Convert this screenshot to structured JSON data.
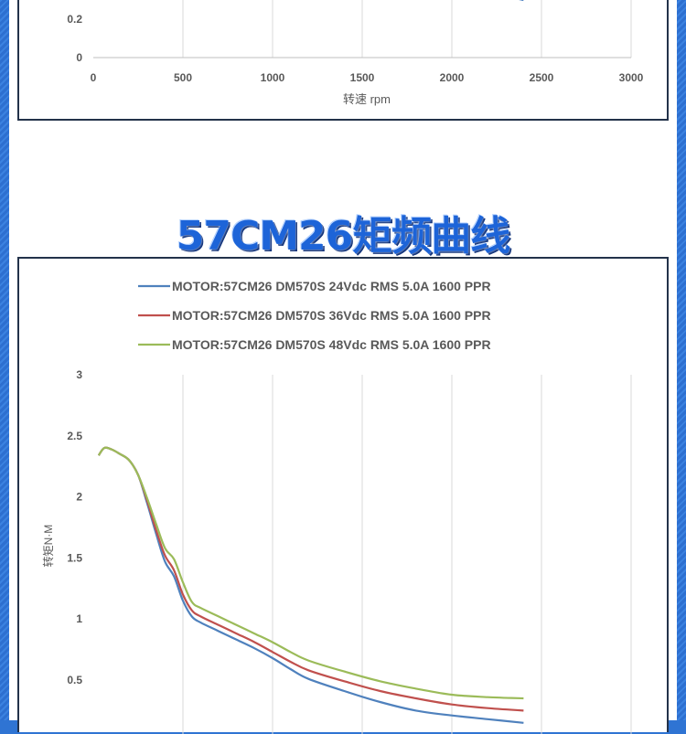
{
  "page": {
    "section_title": "57CM26矩频曲线"
  },
  "chart_data": [
    {
      "type": "line",
      "xlabel": "转速 rpm",
      "xlim": [
        0,
        3000
      ],
      "xticks": [
        "0",
        "500",
        "1000",
        "1500",
        "2000",
        "2500",
        "3000"
      ],
      "ylim": [
        0,
        3
      ],
      "yticks_visible": [
        "0",
        "0.2"
      ],
      "series": [
        {
          "x": [
            2300,
            2400
          ],
          "y": [
            0.32,
            0.3
          ],
          "color": "#4a7ec0"
        }
      ]
    },
    {
      "type": "line",
      "ylabel": "转矩N·M",
      "ylim": [
        0,
        3
      ],
      "yticks": [
        "0.5",
        "1",
        "1.5",
        "2",
        "2.5",
        "3"
      ],
      "grid": "vertical",
      "legend_position": "top",
      "series": [
        {
          "name": "MOTOR:57CM26   DM570S 24Vdc  RMS 5.0A  1600 PPR",
          "color": "#4f81bd",
          "x": [
            30,
            60,
            100,
            150,
            200,
            250,
            300,
            350,
            400,
            450,
            500,
            550,
            600,
            700,
            800,
            900,
            1000,
            1100,
            1200,
            1400,
            1600,
            1800,
            2000,
            2200,
            2400
          ],
          "y": [
            2.34,
            2.4,
            2.39,
            2.35,
            2.3,
            2.18,
            1.95,
            1.7,
            1.47,
            1.35,
            1.15,
            1.02,
            0.97,
            0.9,
            0.83,
            0.76,
            0.68,
            0.59,
            0.51,
            0.41,
            0.32,
            0.25,
            0.21,
            0.18,
            0.15
          ]
        },
        {
          "name": "MOTOR:57CM26   DM570S 36Vdc  RMS 5.0A  1600 PPR",
          "color": "#c0504d",
          "x": [
            30,
            60,
            100,
            150,
            200,
            250,
            300,
            350,
            400,
            450,
            500,
            550,
            600,
            700,
            800,
            900,
            1000,
            1100,
            1200,
            1400,
            1600,
            1800,
            2000,
            2200,
            2400
          ],
          "y": [
            2.34,
            2.4,
            2.39,
            2.35,
            2.3,
            2.18,
            1.97,
            1.73,
            1.52,
            1.4,
            1.2,
            1.07,
            1.02,
            0.95,
            0.88,
            0.81,
            0.73,
            0.65,
            0.58,
            0.49,
            0.41,
            0.35,
            0.3,
            0.27,
            0.25
          ]
        },
        {
          "name": "MOTOR:57CM26   DM570S 48Vdc  RMS 5.0A  1600 PPR",
          "color": "#9bbb59",
          "x": [
            30,
            60,
            100,
            150,
            200,
            250,
            300,
            350,
            400,
            450,
            500,
            550,
            600,
            700,
            800,
            900,
            1000,
            1100,
            1200,
            1400,
            1600,
            1800,
            2000,
            2200,
            2400
          ],
          "y": [
            2.34,
            2.4,
            2.39,
            2.35,
            2.3,
            2.18,
            1.99,
            1.78,
            1.58,
            1.49,
            1.3,
            1.14,
            1.09,
            1.02,
            0.95,
            0.88,
            0.81,
            0.73,
            0.66,
            0.57,
            0.49,
            0.43,
            0.38,
            0.36,
            0.35
          ]
        }
      ]
    }
  ]
}
